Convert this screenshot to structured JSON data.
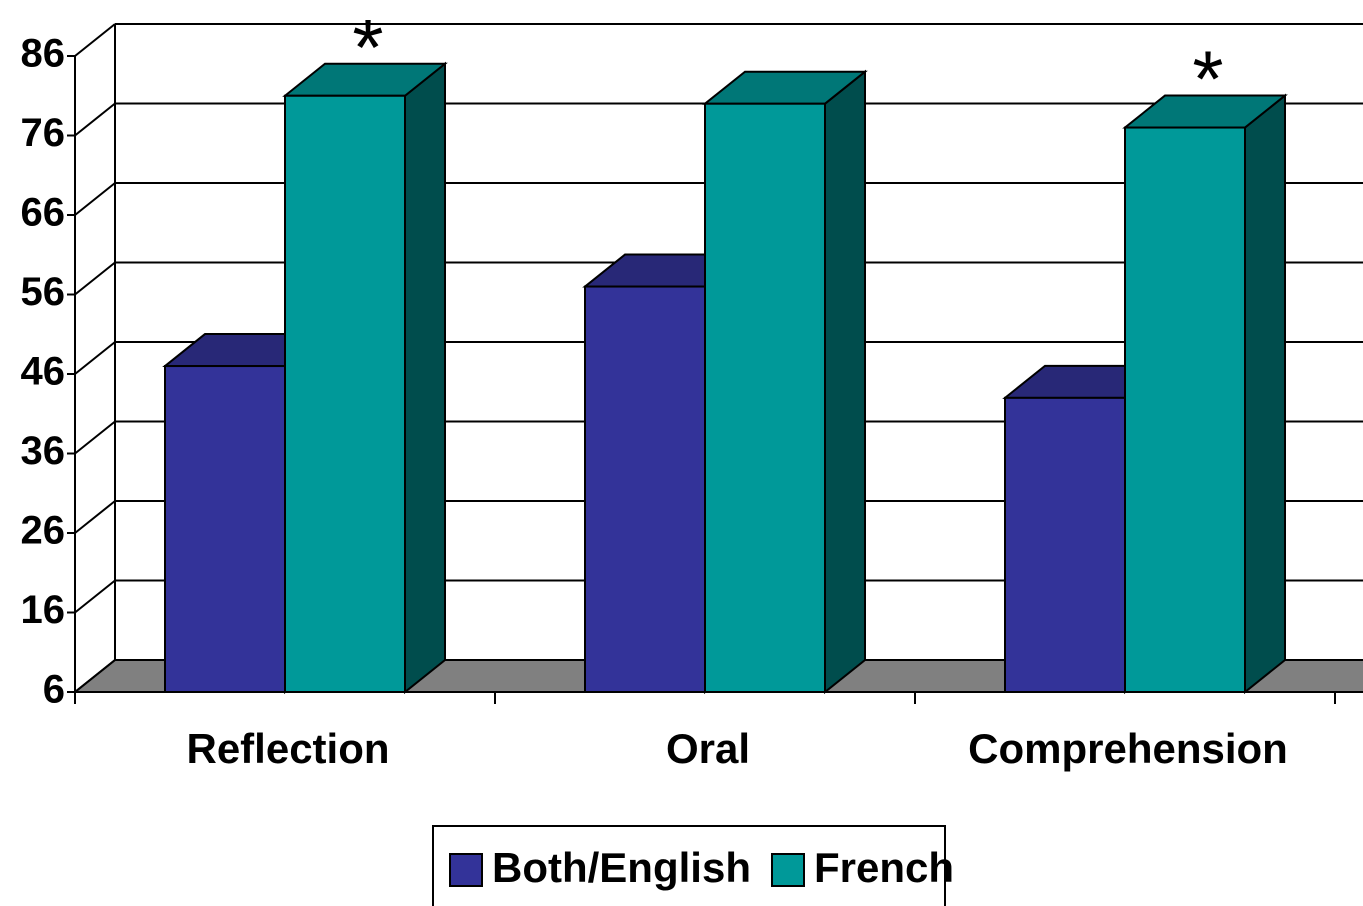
{
  "chart_data": {
    "type": "bar3d",
    "categories": [
      "Reflection",
      "Oral",
      "Comprehension"
    ],
    "series": [
      {
        "name": "Both/English",
        "color": "#333399",
        "values": [
          47,
          57,
          43
        ]
      },
      {
        "name": "French",
        "color": "#009999",
        "values": [
          81,
          80,
          77
        ]
      }
    ],
    "annotations": [
      "*",
      null,
      "*"
    ],
    "ylim": [
      6,
      86
    ],
    "yticks": [
      6,
      16,
      26,
      36,
      46,
      56,
      66,
      76,
      86
    ],
    "grid": true,
    "legend": "bottom"
  }
}
